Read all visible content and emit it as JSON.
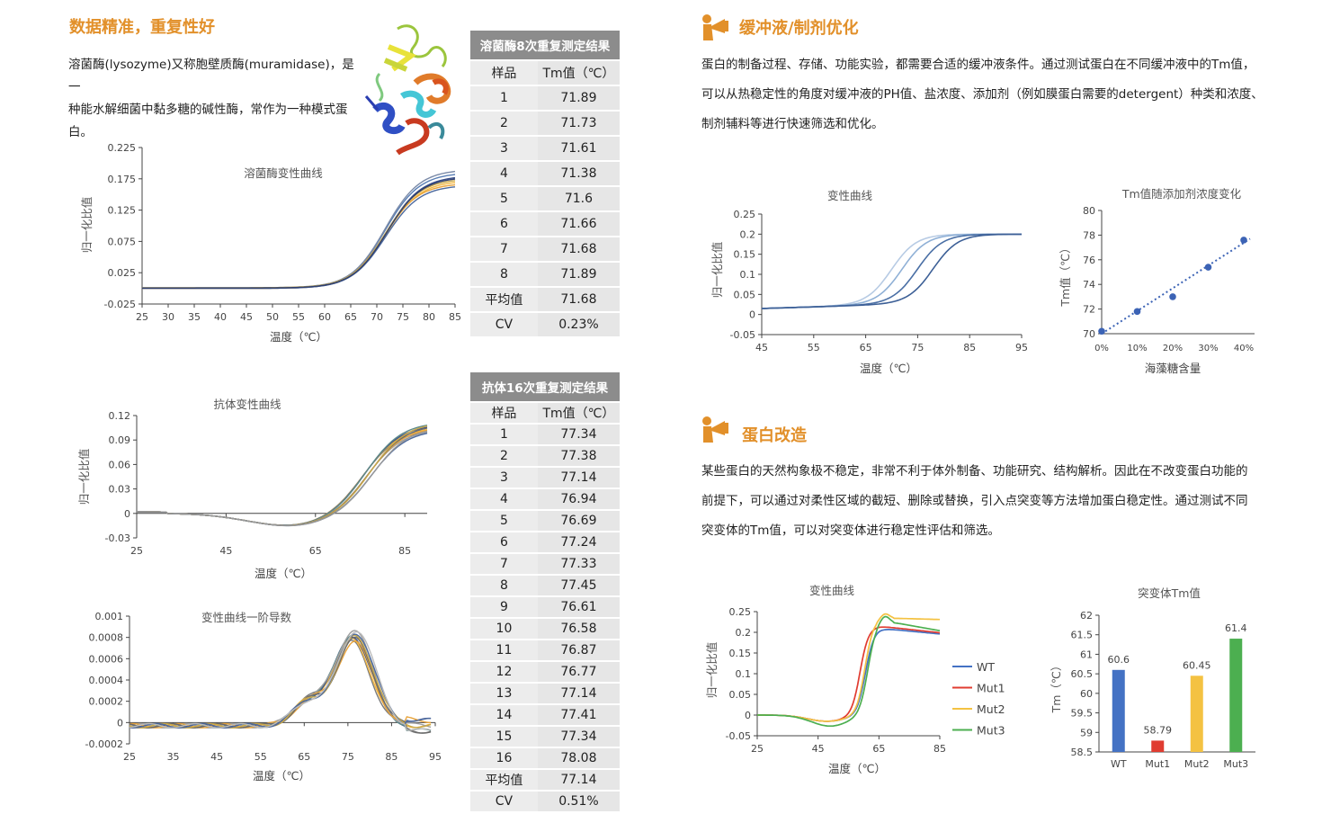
{
  "left": {
    "heading": "数据精准，重复性好",
    "intro": "溶菌酶(lysozyme)又称胞壁质酶(muramidase)，是一种能水解细菌中黏多糖的碱性酶，常作为一种模式蛋白。",
    "intro_lines": [
      "溶菌酶(lysozyme)又称胞壁质酶(muramidase)，是一",
      "种能水解细菌中黏多糖的碱性酶，常作为一种模式蛋",
      "白。"
    ]
  },
  "charts": {
    "lysozyme": {
      "title": "溶菌酶变性曲线",
      "ylabel": "归一化比值",
      "xlabel": "温度（℃）"
    },
    "antibody": {
      "title": "抗体变性曲线",
      "ylabel": "归一化比值",
      "xlabel": "温度（℃）"
    },
    "derivative": {
      "title": "变性曲线一阶导数",
      "xlabel": "温度（℃）"
    },
    "buffer": {
      "title": "变性曲线",
      "ylabel": "归一化比值",
      "xlabel": "温度（℃）"
    },
    "tm_trend": {
      "title": "Tm值随添加剂浓度变化",
      "ylabel": "Tm值（℃）",
      "xlabel": "海藻糖含量"
    },
    "mutant_curve": {
      "title": "变性曲线",
      "ylabel": "归一化比值",
      "xlabel": "温度（℃）"
    },
    "mutant_tm": {
      "title": "突变体Tm值",
      "ylabel": "Tm（℃）"
    }
  },
  "table_lysozyme": {
    "caption": "溶菌酶8次重复测定结果",
    "headers": [
      "样品",
      "Tm值（℃）"
    ],
    "rows": [
      [
        "1",
        "71.89"
      ],
      [
        "2",
        "71.73"
      ],
      [
        "3",
        "71.61"
      ],
      [
        "4",
        "71.38"
      ],
      [
        "5",
        "71.6"
      ],
      [
        "6",
        "71.66"
      ],
      [
        "7",
        "71.68"
      ],
      [
        "8",
        "71.89"
      ],
      [
        "平均值",
        "71.68"
      ],
      [
        "CV",
        "0.23%"
      ]
    ]
  },
  "table_antibody": {
    "caption": "抗体16次重复测定结果",
    "headers": [
      "样品",
      "Tm值（℃）"
    ],
    "rows": [
      [
        "1",
        "77.34"
      ],
      [
        "2",
        "77.38"
      ],
      [
        "3",
        "77.14"
      ],
      [
        "4",
        "76.94"
      ],
      [
        "5",
        "76.69"
      ],
      [
        "6",
        "77.24"
      ],
      [
        "7",
        "77.33"
      ],
      [
        "8",
        "77.45"
      ],
      [
        "9",
        "76.61"
      ],
      [
        "10",
        "76.58"
      ],
      [
        "11",
        "76.87"
      ],
      [
        "12",
        "76.77"
      ],
      [
        "13",
        "77.14"
      ],
      [
        "14",
        "77.41"
      ],
      [
        "15",
        "77.34"
      ],
      [
        "16",
        "78.08"
      ],
      [
        "平均值",
        "77.14"
      ],
      [
        "CV",
        "0.51%"
      ]
    ]
  },
  "right": {
    "buffer_heading": "缓冲液/制剂优化",
    "buffer_lines": [
      "蛋白的制备过程、存储、功能实验，都需要合适的缓冲液条件。通过测试蛋白在不同缓冲液中的Tm值，",
      "可以从热稳定性的角度对缓冲液的PH值、盐浓度、添加剂（例如膜蛋白需要的detergent）种类和浓度、",
      "制剂辅料等进行快速筛选和优化。"
    ],
    "protein_heading": "蛋白改造",
    "protein_lines": [
      "某些蛋白的天然构象极不稳定，非常不利于体外制备、功能研究、结构解析。因此在不改变蛋白功能的",
      "前提下，可以通过对柔性区域的截短、删除或替换，引入点突变等方法增加蛋白稳定性。通过测试不同",
      "突变体的Tm值，可以对突变体进行稳定性评估和筛选。"
    ]
  },
  "chart_data": [
    {
      "type": "line",
      "title": "溶菌酶变性曲线",
      "xlabel": "温度（℃）",
      "ylabel": "归一化比值",
      "xlim": [
        25,
        85
      ],
      "ylim": [
        -0.025,
        0.225
      ],
      "xticks": [
        "25",
        "30",
        "35",
        "40",
        "45",
        "50",
        "55",
        "60",
        "65",
        "70",
        "75",
        "80",
        "85"
      ],
      "yticks": [
        "-0.025",
        "0.025",
        "0.075",
        "0.125",
        "0.175",
        "0.225"
      ],
      "series_desc": "8 overlapping sigmoid replicates, Tm≈71.7",
      "tm": [
        71.89,
        71.73,
        71.61,
        71.38,
        71.6,
        71.66,
        71.68,
        71.89
      ],
      "low": 0,
      "high": 0.18
    },
    {
      "type": "line",
      "title": "抗体变性曲线",
      "xlabel": "温度（℃）",
      "ylabel": "归一化比值",
      "xlim": [
        25,
        90
      ],
      "ylim": [
        -0.03,
        0.12
      ],
      "xticks": [
        "25",
        "45",
        "65",
        "85"
      ],
      "yticks": [
        "-0.03",
        "0",
        "0.03",
        "0.06",
        "0.09",
        "0.12"
      ],
      "tm_mean": 77.14,
      "high": 0.105
    },
    {
      "type": "line",
      "title": "变性曲线一阶导数",
      "xlabel": "温度（℃）",
      "xlim": [
        25,
        95
      ],
      "ylim": [
        -0.0002,
        0.001
      ],
      "xticks": [
        "25",
        "35",
        "45",
        "55",
        "65",
        "75",
        "85",
        "95"
      ],
      "yticks": [
        "-0.0002",
        "0",
        "0.0002",
        "0.0004",
        "0.0006",
        "0.0008",
        "0.001"
      ],
      "peak_x": 77,
      "peak_y": 0.00085
    },
    {
      "type": "line",
      "title": "变性曲线",
      "xlabel": "温度（℃）",
      "ylabel": "归一化比值",
      "xlim": [
        45,
        95
      ],
      "ylim": [
        -0.05,
        0.25
      ],
      "xticks": [
        "45",
        "55",
        "65",
        "75",
        "85",
        "95"
      ],
      "yticks": [
        "-0.05",
        "0",
        "0.05",
        "0.1",
        "0.15",
        "0.2",
        "0.25"
      ],
      "tm": [
        70,
        72,
        75,
        78
      ]
    },
    {
      "type": "scatter",
      "title": "Tm值随添加剂浓度变化",
      "xlabel": "海藻糖含量",
      "ylabel": "Tm值（℃）",
      "categories": [
        "0%",
        "10%",
        "20%",
        "30%",
        "40%"
      ],
      "values": [
        70.2,
        71.8,
        73.0,
        75.4,
        77.6
      ],
      "ylim": [
        70,
        80
      ],
      "yticks": [
        "70",
        "72",
        "74",
        "76",
        "78",
        "80"
      ],
      "trendline": "dotted"
    },
    {
      "type": "line",
      "title": "变性曲线",
      "xlabel": "温度（℃）",
      "ylabel": "归一化比值",
      "xlim": [
        25,
        85
      ],
      "ylim": [
        -0.05,
        0.25
      ],
      "xticks": [
        "25",
        "45",
        "65",
        "85"
      ],
      "yticks": [
        "-0.05",
        "0",
        "0.05",
        "0.1",
        "0.15",
        "0.2",
        "0.25"
      ],
      "series": [
        {
          "name": "WT",
          "color": "#4472c4",
          "tm": 60.6
        },
        {
          "name": "Mut1",
          "color": "#e03c31",
          "tm": 58.79
        },
        {
          "name": "Mut2",
          "color": "#f4c242",
          "tm": 60.45
        },
        {
          "name": "Mut3",
          "color": "#4caf50",
          "tm": 61.4
        }
      ],
      "legend": "right"
    },
    {
      "type": "bar",
      "title": "突变体Tm值",
      "ylabel": "Tm（℃）",
      "categories": [
        "WT",
        "Mut1",
        "Mut2",
        "Mut3"
      ],
      "values": [
        60.6,
        58.79,
        60.45,
        61.4
      ],
      "labels": [
        "60.6",
        "58.79",
        "60.45",
        "61.4"
      ],
      "colors": [
        "#4472c4",
        "#e03c31",
        "#f4c242",
        "#4caf50"
      ],
      "ylim": [
        58.5,
        62
      ],
      "yticks": [
        "58.5",
        "59",
        "59.5",
        "60",
        "60.5",
        "61",
        "61.5",
        "62"
      ]
    }
  ]
}
